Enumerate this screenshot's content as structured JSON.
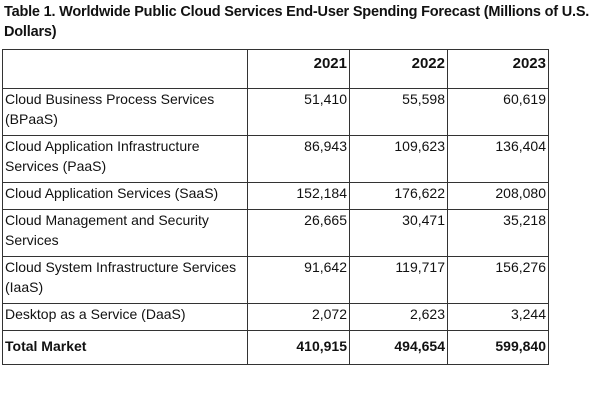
{
  "caption": "Table 1. Worldwide Public Cloud Services End-User Spending Forecast (Millions of U.S. Dollars)",
  "table": {
    "columns": [
      "",
      "2021",
      "2022",
      "2023"
    ],
    "rows": [
      {
        "label": "Cloud Business Process Services (BPaaS)",
        "values": [
          "51,410",
          "55,598",
          "60,619"
        ]
      },
      {
        "label": "Cloud Application Infrastructure Services (PaaS)",
        "values": [
          "86,943",
          "109,623",
          "136,404"
        ]
      },
      {
        "label": "Cloud Application Services (SaaS)",
        "values": [
          "152,184",
          "176,622",
          "208,080"
        ]
      },
      {
        "label": "Cloud Management and Security Services",
        "values": [
          "26,665",
          "30,471",
          "35,218"
        ]
      },
      {
        "label": "Cloud System Infrastructure Services (IaaS)",
        "values": [
          "91,642",
          "119,717",
          "156,276"
        ]
      },
      {
        "label": "Desktop as a Service (DaaS)",
        "values": [
          "2,072",
          "2,623",
          "3,244"
        ]
      }
    ],
    "total": {
      "label": "Total Market",
      "values": [
        "410,915",
        "494,654",
        "599,840"
      ]
    }
  }
}
